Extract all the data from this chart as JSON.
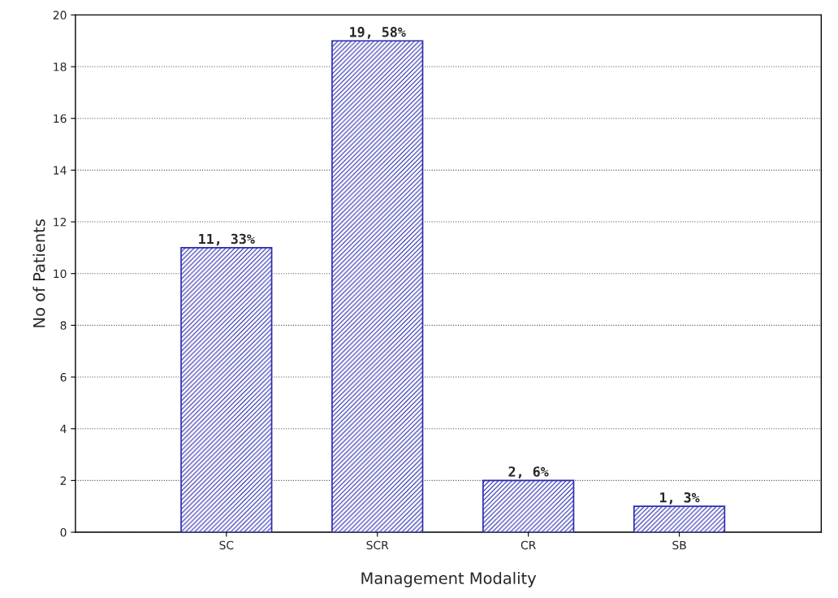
{
  "chart_data": {
    "type": "bar",
    "xlabel": "Management Modality",
    "ylabel": "No of Patients",
    "categories": [
      "SC",
      "SCR",
      "CR",
      "SB"
    ],
    "values": [
      11,
      19,
      2,
      1
    ],
    "value_labels": [
      "11, 33%",
      "19, 58%",
      "2, 6%",
      "1, 3%"
    ],
    "color": "#2b2bb0",
    "ylim": [
      0,
      20
    ],
    "yticks": [
      0,
      2,
      4,
      6,
      8,
      10,
      12,
      14,
      16,
      18,
      20
    ],
    "grid": "y"
  }
}
